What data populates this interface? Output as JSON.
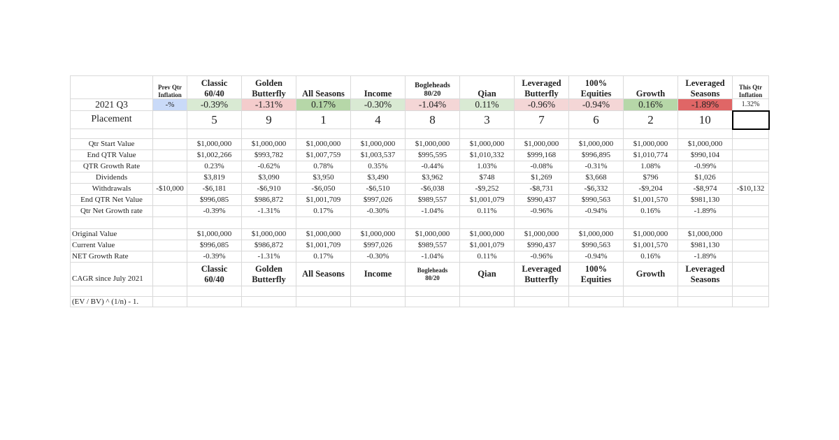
{
  "header": {
    "prev_qtr_inflation": "Prev Qtr\nInflation",
    "portfolios": [
      "Classic\n60/40",
      "Golden\nButterfly",
      "All Seasons",
      "Income",
      "Bogleheads\n80/20",
      "Qian",
      "Leveraged\nButterfly",
      "100%\nEquities",
      "Growth",
      "Leveraged\nSeasons"
    ],
    "this_qtr_inflation": "This Qtr\nInflation"
  },
  "summary": {
    "label": "2021 Q3",
    "prev": "-%",
    "values": [
      "-0.39%",
      "-1.31%",
      "0.17%",
      "-0.30%",
      "-1.04%",
      "0.11%",
      "-0.96%",
      "-0.94%",
      "0.16%",
      "-1.89%"
    ],
    "this": "1.32%",
    "prev_color": "#c9daf8",
    "colors": [
      "#d9ead3",
      "#f4cccc",
      "#b6d7a8",
      "#d9ead3",
      "#f4d6d6",
      "#d9ead3",
      "#f4d6d6",
      "#f4d6d6",
      "#b6d7a8",
      "#e06666"
    ]
  },
  "placement": {
    "label": "Placement",
    "values": [
      5,
      9,
      1,
      4,
      8,
      3,
      7,
      6,
      2,
      10
    ]
  },
  "quarter_rows": [
    {
      "label": "Qtr Start Value",
      "values": [
        "$1,000,000",
        "$1,000,000",
        "$1,000,000",
        "$1,000,000",
        "$1,000,000",
        "$1,000,000",
        "$1,000,000",
        "$1,000,000",
        "$1,000,000",
        "$1,000,000"
      ]
    },
    {
      "label": "End QTR Value",
      "values": [
        "$1,002,266",
        "$993,782",
        "$1,007,759",
        "$1,003,537",
        "$995,595",
        "$1,010,332",
        "$999,168",
        "$996,895",
        "$1,010,774",
        "$990,104"
      ]
    },
    {
      "label": "QTR Growth Rate",
      "values": [
        "0.23%",
        "-0.62%",
        "0.78%",
        "0.35%",
        "-0.44%",
        "1.03%",
        "-0.08%",
        "-0.31%",
        "1.08%",
        "-0.99%"
      ]
    },
    {
      "label": "Dividends",
      "values": [
        "$3,819",
        "$3,090",
        "$3,950",
        "$3,490",
        "$3,962",
        "$748",
        "$1,269",
        "$3,668",
        "$796",
        "$1,026"
      ]
    },
    {
      "label": "Withdrawals",
      "prev": "-$10,000",
      "values": [
        "-$6,181",
        "-$6,910",
        "-$6,050",
        "-$6,510",
        "-$6,038",
        "-$9,252",
        "-$8,731",
        "-$6,332",
        "-$9,204",
        "-$8,974"
      ],
      "this": "-$10,132"
    },
    {
      "label": "End QTR Net Value",
      "values": [
        "$996,085",
        "$986,872",
        "$1,001,709",
        "$997,026",
        "$989,557",
        "$1,001,079",
        "$990,437",
        "$990,563",
        "$1,001,570",
        "$981,130"
      ]
    },
    {
      "label": "Qtr Net Growth rate",
      "values": [
        "-0.39%",
        "-1.31%",
        "0.17%",
        "-0.30%",
        "-1.04%",
        "0.11%",
        "-0.96%",
        "-0.94%",
        "0.16%",
        "-1.89%"
      ]
    }
  ],
  "total_rows": [
    {
      "label": "Original Value",
      "values": [
        "$1,000,000",
        "$1,000,000",
        "$1,000,000",
        "$1,000,000",
        "$1,000,000",
        "$1,000,000",
        "$1,000,000",
        "$1,000,000",
        "$1,000,000",
        "$1,000,000"
      ]
    },
    {
      "label": "Current Value",
      "values": [
        "$996,085",
        "$986,872",
        "$1,001,709",
        "$997,026",
        "$989,557",
        "$1,001,079",
        "$990,437",
        "$990,563",
        "$1,001,570",
        "$981,130"
      ]
    },
    {
      "label": "NET Growth Rate",
      "values": [
        "-0.39%",
        "-1.31%",
        "0.17%",
        "-0.30%",
        "-1.04%",
        "0.11%",
        "-0.96%",
        "-0.94%",
        "0.16%",
        "-1.89%"
      ]
    }
  ],
  "cagr": {
    "label": "CAGR since July 2021"
  },
  "formula": "(EV / BV) ^ (1/n) - 1."
}
